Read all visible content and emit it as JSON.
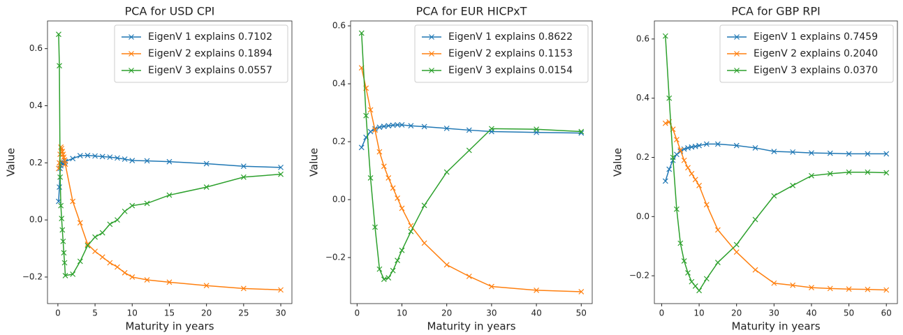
{
  "chart_data": [
    {
      "type": "line",
      "title": "PCA for USD CPI",
      "x_label": "Maturity in years",
      "y_label": "Value",
      "x": [
        0.1,
        0.2,
        0.3,
        0.4,
        0.5,
        0.6,
        0.7,
        0.8,
        0.9,
        1,
        2,
        3,
        4,
        5,
        6,
        7,
        8,
        9,
        10,
        12,
        15,
        20,
        25,
        30
      ],
      "series": [
        {
          "name": "EigenV 1 explains 0.7102",
          "color": "#1f77b4",
          "values": [
            0.065,
            0.115,
            0.18,
            0.19,
            0.2,
            0.2,
            0.2,
            0.2,
            0.2,
            0.205,
            0.215,
            0.225,
            0.226,
            0.224,
            0.222,
            0.22,
            0.217,
            0.213,
            0.208,
            0.207,
            0.204,
            0.197,
            0.188,
            0.184
          ]
        },
        {
          "name": "EigenV 2 explains 0.1894",
          "color": "#ff7f0e",
          "values": [
            0.18,
            0.2,
            0.23,
            0.255,
            0.25,
            0.24,
            0.23,
            0.22,
            0.21,
            0.195,
            0.065,
            -0.01,
            -0.085,
            -0.11,
            -0.13,
            -0.15,
            -0.165,
            -0.185,
            -0.2,
            -0.21,
            -0.218,
            -0.23,
            -0.24,
            -0.245
          ]
        },
        {
          "name": "EigenV 3 explains 0.0557",
          "color": "#2ca02c",
          "values": [
            0.65,
            0.54,
            0.15,
            0.05,
            0.005,
            -0.035,
            -0.075,
            -0.115,
            -0.15,
            -0.195,
            -0.19,
            -0.145,
            -0.09,
            -0.06,
            -0.045,
            -0.015,
            0.0,
            0.03,
            0.05,
            0.058,
            0.087,
            0.115,
            0.15,
            0.16
          ]
        }
      ],
      "xlim": [
        -1.4,
        31.5
      ],
      "xticks": [
        0,
        5,
        10,
        15,
        20,
        25,
        30
      ],
      "ylim": [
        -0.293,
        0.697
      ],
      "yticks": [
        {
          "value": -0.2,
          "label": "−0.2"
        },
        {
          "value": 0,
          "label": "0.0"
        },
        0.2,
        0.4,
        0.6
      ],
      "legend": "upper right",
      "marker": "x"
    },
    {
      "type": "line",
      "title": "PCA for EUR HICPxT",
      "x_label": "Maturity in years",
      "y_label": "Value",
      "x": [
        1,
        2,
        3,
        4,
        5,
        6,
        7,
        8,
        9,
        10,
        12,
        15,
        20,
        25,
        30,
        40,
        50
      ],
      "series": [
        {
          "name": "EigenV 1 explains 0.8622",
          "color": "#1f77b4",
          "values": [
            0.18,
            0.215,
            0.235,
            0.245,
            0.25,
            0.253,
            0.255,
            0.257,
            0.258,
            0.258,
            0.255,
            0.252,
            0.246,
            0.24,
            0.235,
            0.232,
            0.23
          ]
        },
        {
          "name": "EigenV 2 explains 0.1153",
          "color": "#ff7f0e",
          "values": [
            0.455,
            0.385,
            0.31,
            0.24,
            0.165,
            0.115,
            0.075,
            0.04,
            0.005,
            -0.03,
            -0.09,
            -0.15,
            -0.225,
            -0.265,
            -0.3,
            -0.313,
            -0.318
          ]
        },
        {
          "name": "EigenV 3 explains 0.0154",
          "color": "#2ca02c",
          "values": [
            0.575,
            0.29,
            0.075,
            -0.095,
            -0.24,
            -0.275,
            -0.27,
            -0.245,
            -0.21,
            -0.175,
            -0.11,
            -0.02,
            0.095,
            0.17,
            0.245,
            0.243,
            0.235
          ]
        }
      ],
      "xlim": [
        -1.45,
        52.45
      ],
      "xticks": [
        0,
        10,
        20,
        30,
        40,
        50
      ],
      "ylim": [
        -0.359,
        0.617
      ],
      "yticks": [
        {
          "value": -0.2,
          "label": "−0.2"
        },
        {
          "value": 0,
          "label": "0.0"
        },
        0.2,
        0.4,
        0.6
      ],
      "legend": "upper right",
      "marker": "x"
    },
    {
      "type": "line",
      "title": "PCA for GBP RPI",
      "x_label": "Maturity in years",
      "y_label": "Value",
      "x": [
        1,
        2,
        3,
        4,
        5,
        6,
        7,
        8,
        9,
        10,
        12,
        15,
        20,
        25,
        30,
        35,
        40,
        45,
        50,
        55,
        60
      ],
      "series": [
        {
          "name": "EigenV 1 explains 0.7459",
          "color": "#1f77b4",
          "values": [
            0.12,
            0.16,
            0.19,
            0.21,
            0.22,
            0.228,
            0.232,
            0.235,
            0.237,
            0.24,
            0.245,
            0.245,
            0.24,
            0.232,
            0.22,
            0.218,
            0.215,
            0.214,
            0.212,
            0.212,
            0.212
          ]
        },
        {
          "name": "EigenV 2 explains 0.2040",
          "color": "#ff7f0e",
          "values": [
            0.315,
            0.32,
            0.295,
            0.26,
            0.225,
            0.19,
            0.165,
            0.145,
            0.125,
            0.105,
            0.04,
            -0.045,
            -0.12,
            -0.18,
            -0.225,
            -0.232,
            -0.24,
            -0.243,
            -0.245,
            -0.246,
            -0.248
          ]
        },
        {
          "name": "EigenV 3 explains 0.0370",
          "color": "#2ca02c",
          "values": [
            0.61,
            0.4,
            0.2,
            0.025,
            -0.09,
            -0.15,
            -0.19,
            -0.22,
            -0.235,
            -0.25,
            -0.21,
            -0.155,
            -0.095,
            -0.01,
            0.07,
            0.105,
            0.138,
            0.145,
            0.15,
            0.15,
            0.148
          ]
        }
      ],
      "xlim": [
        -1.95,
        62.95
      ],
      "xticks": [
        0,
        10,
        20,
        30,
        40,
        50,
        60
      ],
      "ylim": [
        -0.294,
        0.661
      ],
      "yticks": [
        {
          "value": -0.2,
          "label": "−0.2"
        },
        {
          "value": 0,
          "label": "0.0"
        },
        0.2,
        0.4,
        0.6
      ],
      "legend": "upper right",
      "marker": "x"
    }
  ]
}
